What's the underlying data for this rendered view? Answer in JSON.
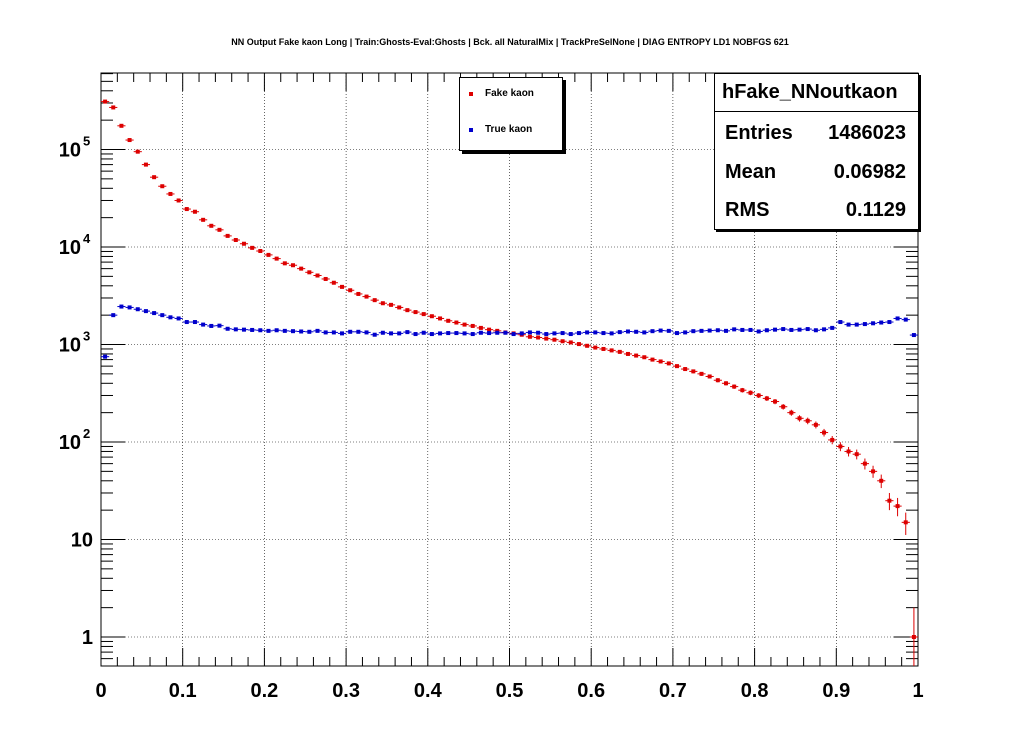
{
  "title": "NN Output Fake kaon Long | Train:Ghosts-Eval:Ghosts | Bck. all NaturalMix | TrackPreSelNone | DIAG ENTROPY LD1 NOBFGS 621",
  "legend": [
    {
      "label": "Fake kaon",
      "color": "#dd0000"
    },
    {
      "label": "True kaon",
      "color": "#0000cc"
    }
  ],
  "stats": {
    "name": "hFake_NNoutkaon",
    "rows": [
      {
        "label": "Entries",
        "value": "1486023"
      },
      {
        "label": "Mean",
        "value": "0.06982"
      },
      {
        "label": "RMS",
        "value": "0.1129"
      }
    ]
  },
  "chart_data": {
    "type": "scatter",
    "title": "NN Output Fake kaon Long | Train:Ghosts-Eval:Ghosts | Bck. all NaturalMix | TrackPreSelNone | DIAG ENTROPY LD1 NOBFGS 621",
    "xlabel": "",
    "ylabel": "",
    "xlim": [
      0,
      1
    ],
    "ylim": [
      0.5,
      650000
    ],
    "yscale": "log",
    "grid": true,
    "legend_position": "top-center",
    "xticks": [
      "0",
      "0.1",
      "0.2",
      "0.3",
      "0.4",
      "0.5",
      "0.6",
      "0.7",
      "0.8",
      "0.9",
      "1"
    ],
    "yticks": [
      {
        "value": 1,
        "base": "1",
        "exp": ""
      },
      {
        "value": 10,
        "base": "10",
        "exp": ""
      },
      {
        "value": 100,
        "base": "10",
        "exp": "2"
      },
      {
        "value": 1000,
        "base": "10",
        "exp": "3"
      },
      {
        "value": 10000,
        "base": "10",
        "exp": "4"
      },
      {
        "value": 100000,
        "base": "10",
        "exp": "5"
      }
    ],
    "series": [
      {
        "name": "Fake kaon",
        "color": "#dd0000",
        "x": [
          0.005,
          0.015,
          0.025,
          0.035,
          0.045,
          0.055,
          0.065,
          0.075,
          0.085,
          0.095,
          0.105,
          0.115,
          0.125,
          0.135,
          0.145,
          0.155,
          0.165,
          0.175,
          0.185,
          0.195,
          0.205,
          0.215,
          0.225,
          0.235,
          0.245,
          0.255,
          0.265,
          0.275,
          0.285,
          0.295,
          0.305,
          0.315,
          0.325,
          0.335,
          0.345,
          0.355,
          0.365,
          0.375,
          0.385,
          0.395,
          0.405,
          0.415,
          0.425,
          0.435,
          0.445,
          0.455,
          0.465,
          0.475,
          0.485,
          0.495,
          0.505,
          0.515,
          0.525,
          0.535,
          0.545,
          0.555,
          0.565,
          0.575,
          0.585,
          0.595,
          0.605,
          0.615,
          0.625,
          0.635,
          0.645,
          0.655,
          0.665,
          0.675,
          0.685,
          0.695,
          0.705,
          0.715,
          0.725,
          0.735,
          0.745,
          0.755,
          0.765,
          0.775,
          0.785,
          0.795,
          0.805,
          0.815,
          0.825,
          0.835,
          0.845,
          0.855,
          0.865,
          0.875,
          0.885,
          0.895,
          0.905,
          0.915,
          0.925,
          0.935,
          0.945,
          0.955,
          0.965,
          0.975,
          0.985,
          0.995
        ],
        "y": [
          310000,
          270000,
          175000,
          125000,
          95000,
          70000,
          52000,
          42000,
          35000,
          30000,
          24500,
          23000,
          19000,
          16500,
          15000,
          13000,
          11800,
          10800,
          9800,
          9100,
          8300,
          7600,
          6800,
          6500,
          6000,
          5500,
          5100,
          4700,
          4300,
          3900,
          3600,
          3300,
          3100,
          2850,
          2650,
          2550,
          2400,
          2250,
          2150,
          2050,
          1950,
          1850,
          1750,
          1680,
          1600,
          1550,
          1480,
          1420,
          1380,
          1330,
          1300,
          1260,
          1200,
          1180,
          1150,
          1120,
          1080,
          1050,
          1010,
          970,
          930,
          900,
          870,
          840,
          800,
          770,
          740,
          700,
          670,
          640,
          600,
          560,
          530,
          500,
          470,
          430,
          400,
          370,
          340,
          320,
          300,
          280,
          260,
          230,
          200,
          175,
          165,
          150,
          125,
          105,
          90,
          80,
          75,
          60,
          50,
          40,
          25,
          22,
          15,
          1
        ]
      },
      {
        "name": "True kaon",
        "color": "#0000cc",
        "x": [
          0.005,
          0.015,
          0.025,
          0.035,
          0.045,
          0.055,
          0.065,
          0.075,
          0.085,
          0.095,
          0.105,
          0.115,
          0.125,
          0.135,
          0.145,
          0.155,
          0.165,
          0.175,
          0.185,
          0.195,
          0.205,
          0.215,
          0.225,
          0.235,
          0.245,
          0.255,
          0.265,
          0.275,
          0.285,
          0.295,
          0.305,
          0.315,
          0.325,
          0.335,
          0.345,
          0.355,
          0.365,
          0.375,
          0.385,
          0.395,
          0.405,
          0.415,
          0.425,
          0.435,
          0.445,
          0.455,
          0.465,
          0.475,
          0.485,
          0.495,
          0.505,
          0.515,
          0.525,
          0.535,
          0.545,
          0.555,
          0.565,
          0.575,
          0.585,
          0.595,
          0.605,
          0.615,
          0.625,
          0.635,
          0.645,
          0.655,
          0.665,
          0.675,
          0.685,
          0.695,
          0.705,
          0.715,
          0.725,
          0.735,
          0.745,
          0.755,
          0.765,
          0.775,
          0.785,
          0.795,
          0.805,
          0.815,
          0.825,
          0.835,
          0.845,
          0.855,
          0.865,
          0.875,
          0.885,
          0.895,
          0.905,
          0.915,
          0.925,
          0.935,
          0.945,
          0.955,
          0.965,
          0.975,
          0.985,
          0.995
        ],
        "y": [
          750,
          2000,
          2450,
          2400,
          2300,
          2200,
          2100,
          2000,
          1900,
          1850,
          1700,
          1700,
          1600,
          1550,
          1560,
          1450,
          1430,
          1420,
          1410,
          1400,
          1380,
          1400,
          1380,
          1370,
          1360,
          1350,
          1380,
          1330,
          1330,
          1300,
          1350,
          1350,
          1330,
          1260,
          1320,
          1300,
          1300,
          1340,
          1280,
          1320,
          1280,
          1300,
          1310,
          1310,
          1300,
          1280,
          1320,
          1310,
          1320,
          1320,
          1280,
          1300,
          1330,
          1320,
          1280,
          1300,
          1310,
          1280,
          1310,
          1330,
          1330,
          1310,
          1300,
          1340,
          1360,
          1350,
          1330,
          1370,
          1390,
          1380,
          1310,
          1330,
          1370,
          1380,
          1390,
          1400,
          1380,
          1430,
          1410,
          1410,
          1360,
          1400,
          1420,
          1440,
          1410,
          1420,
          1440,
          1400,
          1430,
          1480,
          1700,
          1600,
          1600,
          1620,
          1650,
          1680,
          1700,
          1850,
          1800,
          1250
        ]
      }
    ]
  }
}
